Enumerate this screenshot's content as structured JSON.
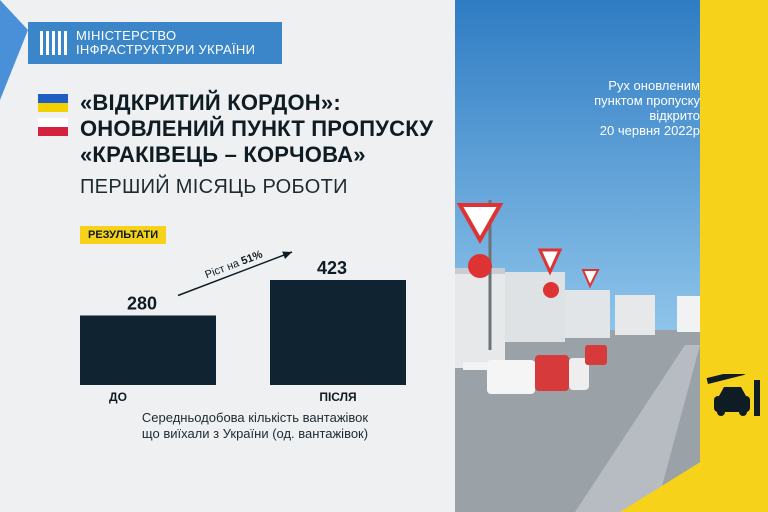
{
  "ministry": {
    "line1": "МІНІСТЕРСТВО",
    "line2": "ІНФРАСТРУКТУРИ УКРАЇНИ"
  },
  "headline": {
    "line1": "«ВІДКРИТИЙ КОРДОН»:",
    "line2": "ОНОВЛЕНИЙ ПУНКТ ПРОПУСКУ",
    "line3": "«КРАКІВЕЦЬ – КОРЧОВА»"
  },
  "subhead": "ПЕРШИЙ МІСЯЦЬ РОБОТИ",
  "results_label": "РЕЗУЛЬТАТИ",
  "caption": {
    "line1": "Середньодобова кількість вантажівок",
    "line2": "що виїхали з України (од. вантажівок)"
  },
  "open_notice": {
    "line1": "Рух оновленим",
    "line2": "пунктом пропуску",
    "line3": "відкрито",
    "line4": "20 червня 2022р"
  },
  "colors": {
    "bar": "#0f2330",
    "accent_yellow": "#f7d21b",
    "ministry_blue": "#3b86c8"
  },
  "icons": {
    "car": "car-barrier-icon",
    "ministry_logo": "ministry-logo-icon"
  },
  "chart_data": {
    "type": "bar",
    "categories": [
      "ДО",
      "ПІСЛЯ"
    ],
    "values": [
      280,
      423
    ],
    "data_labels": [
      "280",
      "423"
    ],
    "annotation": {
      "prefix": "Ріст на ",
      "value": "51%"
    },
    "ylim": [
      0,
      423
    ],
    "grid": false
  }
}
